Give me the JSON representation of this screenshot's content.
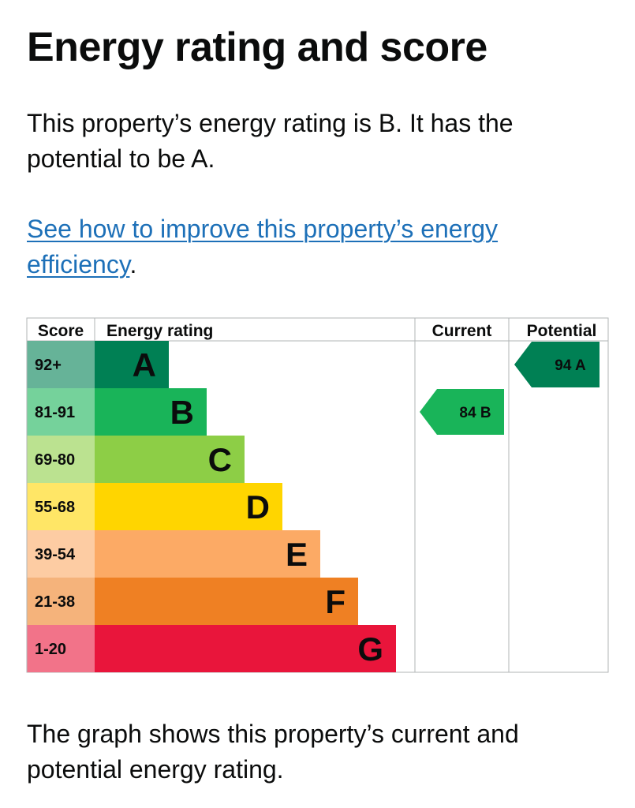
{
  "heading": "Energy rating and score",
  "intro_text": "This property’s energy rating is B. It has the potential to be A.",
  "improve_link": {
    "label": "See how to improve this property’s energy efficiency",
    "trailing": "."
  },
  "footer_text": "The graph shows this property’s current and potential energy rating.",
  "chart_data": {
    "type": "bar",
    "columns": {
      "score": "Score",
      "rating": "Energy rating",
      "current": "Current",
      "potential": "Potential"
    },
    "bands": [
      {
        "band": "A",
        "score_range": "92+",
        "color": "#008054",
        "score_color": "#66b398"
      },
      {
        "band": "B",
        "score_range": "81-91",
        "color": "#19b459",
        "score_color": "#75d29b"
      },
      {
        "band": "C",
        "score_range": "69-80",
        "color": "#8dce46",
        "score_color": "#bbe290"
      },
      {
        "band": "D",
        "score_range": "55-68",
        "color": "#ffd500",
        "score_color": "#ffe666"
      },
      {
        "band": "E",
        "score_range": "39-54",
        "color": "#fcaa65",
        "score_color": "#fdcca3"
      },
      {
        "band": "F",
        "score_range": "21-38",
        "color": "#ef8023",
        "score_color": "#f5b37b"
      },
      {
        "band": "G",
        "score_range": "1-20",
        "color": "#e9153b",
        "score_color": "#f27389"
      }
    ],
    "current": {
      "score": 84,
      "band": "B",
      "label": "84  B"
    },
    "potential": {
      "score": 94,
      "band": "A",
      "label": "94  A"
    }
  }
}
